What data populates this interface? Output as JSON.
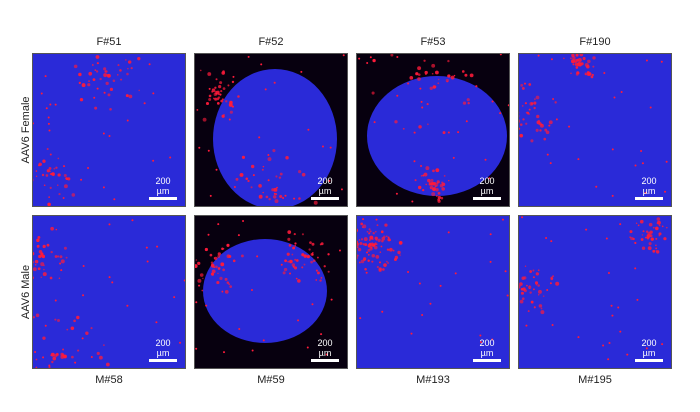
{
  "columns_top": [
    "F#51",
    "F#52",
    "F#53",
    "F#190"
  ],
  "columns_bottom": [
    "M#58",
    "M#59",
    "M#193",
    "M#195"
  ],
  "rows": [
    "AAV6 Female",
    "AAV6 Male"
  ],
  "scale_bar": "200 µm",
  "colors": {
    "nuclei": "#2a2ad8",
    "signal": "#ff1a3a",
    "background": "#07000f"
  }
}
